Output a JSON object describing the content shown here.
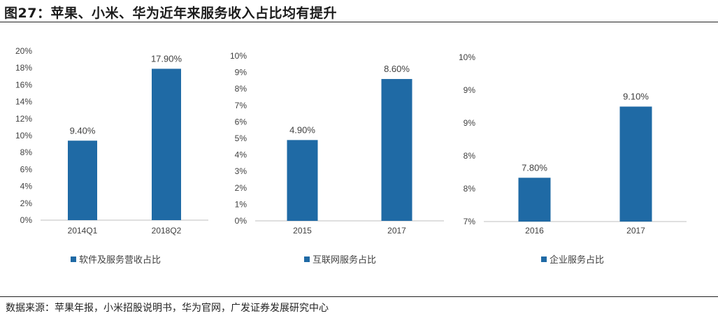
{
  "figure": {
    "title": "图27：苹果、小米、华为近年来服务收入占比均有提升",
    "source": "数据来源：苹果年报，小米招股说明书，华为官网，广发证券发展研究中心"
  },
  "colors": {
    "bar": "#1F6AA5",
    "axis": "#bfbfbf"
  },
  "chart_data": [
    {
      "type": "bar",
      "categories": [
        "2014Q1",
        "2018Q2"
      ],
      "series": [
        {
          "name": "软件及服务营收占比",
          "values": [
            9.4,
            17.9
          ]
        }
      ],
      "data_labels": [
        "9.40%",
        "17.90%"
      ],
      "yticks": [
        "0%",
        "2%",
        "4%",
        "6%",
        "8%",
        "10%",
        "12%",
        "14%",
        "16%",
        "18%",
        "20%"
      ],
      "ylim": [
        0,
        20
      ],
      "legend": "bottom-left",
      "grid": false
    },
    {
      "type": "bar",
      "categories": [
        "2015",
        "2017"
      ],
      "series": [
        {
          "name": "互联网服务占比",
          "values": [
            4.9,
            8.6
          ]
        }
      ],
      "data_labels": [
        "4.90%",
        "8.60%"
      ],
      "yticks": [
        "0%",
        "1%",
        "2%",
        "3%",
        "4%",
        "5%",
        "6%",
        "7%",
        "8%",
        "9%",
        "10%"
      ],
      "ylim": [
        0,
        10
      ],
      "legend": "bottom-left",
      "grid": false
    },
    {
      "type": "bar",
      "categories": [
        "2016",
        "2017"
      ],
      "series": [
        {
          "name": "企业服务占比",
          "values": [
            7.8,
            9.1
          ]
        }
      ],
      "data_labels": [
        "7.80%",
        "9.10%"
      ],
      "yticks": [
        "7%",
        "8%",
        "8%",
        "9%",
        "9%",
        "10%"
      ],
      "ylim": [
        7,
        10
      ],
      "legend": "bottom-left",
      "grid": false
    }
  ]
}
